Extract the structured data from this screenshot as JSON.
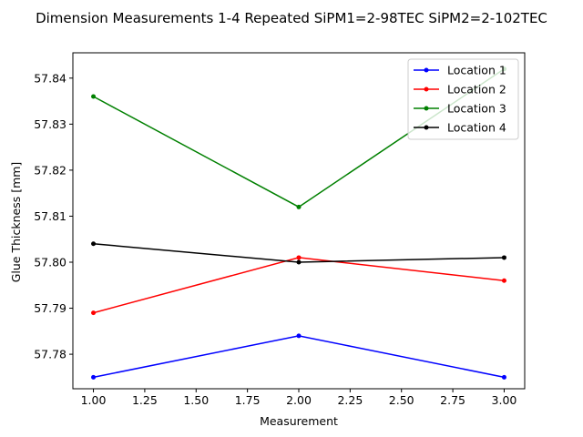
{
  "chart_data": {
    "type": "line",
    "title": "Dimension Measurements 1-4 Repeated SiPM1=2-98TEC SiPM2=2-102TEC",
    "xlabel": "Measurement",
    "ylabel": "Glue Thickness [mm]",
    "xlim": [
      0.9,
      3.1
    ],
    "ylim": [
      57.7725,
      57.8455
    ],
    "xticks": [
      "1.00",
      "1.25",
      "1.50",
      "1.75",
      "2.00",
      "2.25",
      "2.50",
      "2.75",
      "3.00"
    ],
    "yticks": [
      "57.78",
      "57.79",
      "57.80",
      "57.81",
      "57.82",
      "57.83",
      "57.84"
    ],
    "legend_position": "upper-right",
    "grid": false,
    "x": [
      1,
      2,
      3
    ],
    "series": [
      {
        "name": "Location 1",
        "color": "#0000ff",
        "values": [
          57.775,
          57.784,
          57.775
        ]
      },
      {
        "name": "Location 2",
        "color": "#ff0000",
        "values": [
          57.789,
          57.801,
          57.796
        ]
      },
      {
        "name": "Location 3",
        "color": "#008000",
        "values": [
          57.836,
          57.812,
          57.842
        ]
      },
      {
        "name": "Location 4",
        "color": "#000000",
        "values": [
          57.804,
          57.8,
          57.801
        ]
      }
    ]
  }
}
